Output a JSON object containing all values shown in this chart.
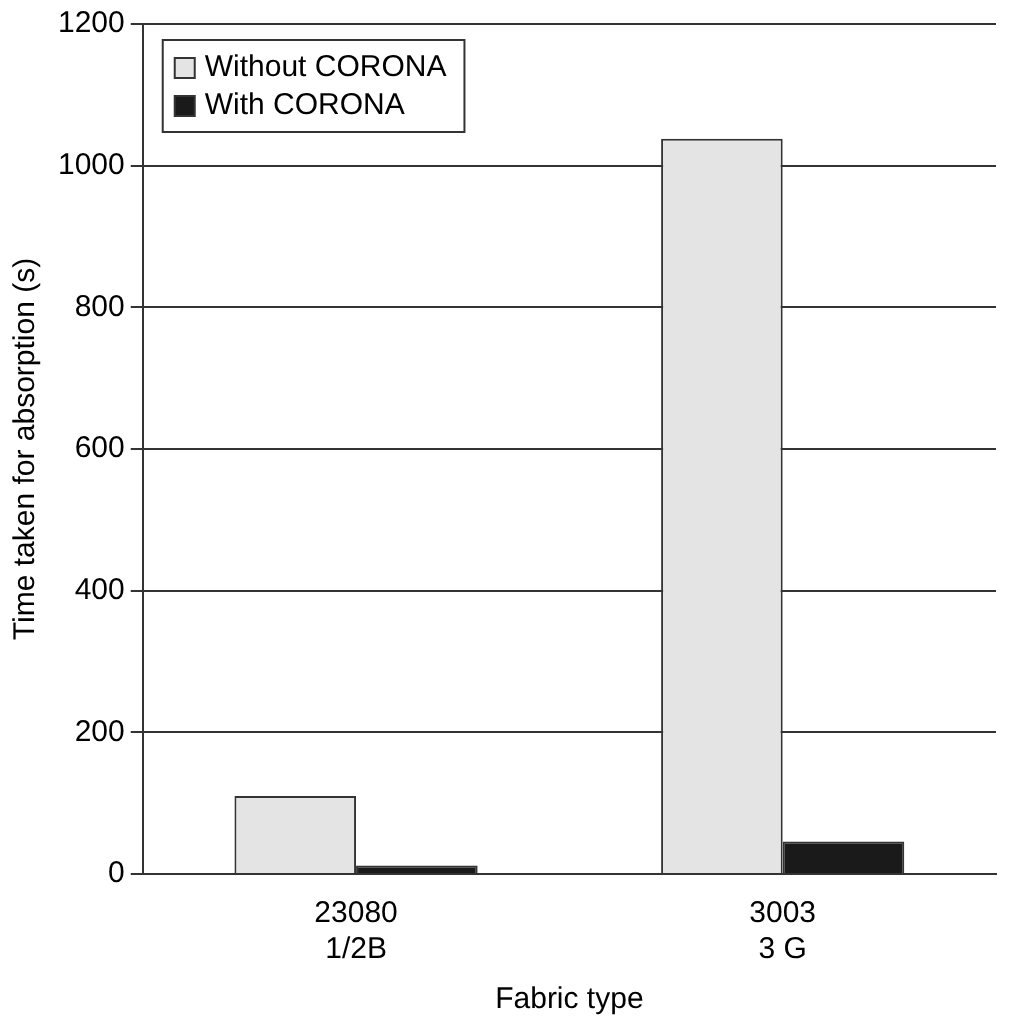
{
  "chart_data": {
    "type": "bar",
    "xlabel": "Fabric type",
    "ylabel": "Time taken for absorption (s)",
    "categories": [
      "23080\n1/2B",
      "3003\n3 G"
    ],
    "series": [
      {
        "name": "Without CORONA",
        "color": "#e4e4e4",
        "values": [
          110,
          1038
        ]
      },
      {
        "name": "With CORONA",
        "color": "#1a1a1a",
        "values": [
          12,
          46
        ]
      }
    ],
    "ylim": [
      0,
      1200
    ],
    "yticks": [
      0,
      200,
      400,
      600,
      800,
      1000,
      1200
    ],
    "grid": "y",
    "legend": "top left"
  }
}
